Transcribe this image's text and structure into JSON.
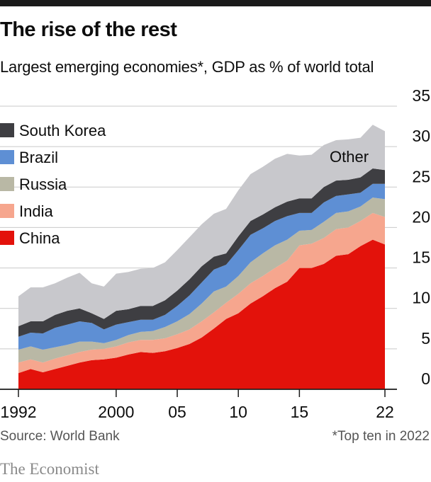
{
  "title": "The rise of the rest",
  "subtitle": "Largest emerging economies*, GDP as % of world total",
  "source": "Source: World Bank",
  "footnote": "*Top ten in 2022",
  "brand": "The Economist",
  "chart_data": {
    "type": "area",
    "stacked": true,
    "x": [
      1992,
      1993,
      1994,
      1995,
      1996,
      1997,
      1998,
      1999,
      2000,
      2001,
      2002,
      2003,
      2004,
      2005,
      2006,
      2007,
      2008,
      2009,
      2010,
      2011,
      2012,
      2013,
      2014,
      2015,
      2016,
      2017,
      2018,
      2019,
      2020,
      2021,
      2022
    ],
    "x_tick_values": [
      1992,
      2000,
      2005,
      2010,
      2015,
      2022
    ],
    "x_tick_labels": [
      "1992",
      "2000",
      "05",
      "10",
      "15",
      "22"
    ],
    "y_ticks": [
      0,
      5,
      10,
      15,
      20,
      25,
      30,
      35
    ],
    "ylim": [
      0,
      35
    ],
    "xlim": [
      1992,
      2022
    ],
    "grid": true,
    "y_axis_position": "right",
    "legend_position": "top-left",
    "series": [
      {
        "name": "China",
        "color": "#e3120b",
        "values": [
          2.0,
          2.5,
          2.1,
          2.5,
          2.9,
          3.3,
          3.6,
          3.7,
          3.9,
          4.3,
          4.6,
          4.5,
          4.7,
          5.1,
          5.6,
          6.4,
          7.5,
          8.7,
          9.4,
          10.6,
          11.5,
          12.5,
          13.3,
          15.0,
          15.0,
          15.5,
          16.5,
          16.7,
          17.7,
          18.5,
          17.9
        ]
      },
      {
        "name": "India",
        "color": "#f6a68e",
        "values": [
          1.3,
          1.2,
          1.2,
          1.3,
          1.3,
          1.3,
          1.3,
          1.3,
          1.4,
          1.5,
          1.5,
          1.6,
          1.6,
          1.7,
          1.8,
          2.0,
          2.0,
          2.0,
          2.4,
          2.5,
          2.5,
          2.5,
          2.6,
          2.8,
          3.0,
          3.2,
          3.3,
          3.3,
          3.1,
          3.3,
          3.4
        ]
      },
      {
        "name": "Russia",
        "color": "#b9b8a5",
        "values": [
          1.6,
          1.6,
          1.6,
          1.4,
          1.3,
          1.3,
          1.0,
          0.7,
          0.8,
          0.9,
          1.0,
          1.1,
          1.4,
          1.6,
          1.9,
          2.2,
          2.6,
          2.0,
          2.2,
          2.6,
          2.8,
          2.8,
          2.6,
          1.8,
          1.7,
          2.0,
          2.0,
          2.0,
          1.8,
          1.9,
          2.2
        ]
      },
      {
        "name": "Brazil",
        "color": "#5e8fd4",
        "values": [
          1.6,
          1.7,
          2.0,
          2.4,
          2.5,
          2.5,
          2.3,
          1.7,
          1.9,
          1.6,
          1.5,
          1.4,
          1.5,
          1.9,
          2.3,
          2.6,
          2.7,
          2.7,
          3.2,
          3.4,
          3.1,
          3.0,
          2.9,
          2.2,
          2.1,
          2.4,
          2.1,
          2.1,
          1.7,
          1.7,
          1.9
        ]
      },
      {
        "name": "South Korea",
        "color": "#3e3e42",
        "values": [
          1.3,
          1.4,
          1.5,
          1.6,
          1.7,
          1.6,
          1.2,
          1.3,
          1.7,
          1.6,
          1.7,
          1.7,
          1.8,
          1.9,
          2.0,
          2.0,
          1.6,
          1.4,
          1.7,
          1.7,
          1.7,
          1.7,
          1.8,
          1.8,
          1.8,
          1.9,
          1.9,
          1.8,
          1.9,
          1.9,
          1.7
        ]
      },
      {
        "name": "Other",
        "color": "#c8c8cc",
        "values": [
          3.7,
          4.2,
          4.2,
          3.9,
          4.1,
          4.4,
          3.7,
          4.0,
          4.6,
          4.6,
          4.6,
          4.7,
          4.7,
          5.0,
          5.2,
          5.2,
          5.3,
          5.5,
          5.7,
          5.8,
          5.9,
          6.0,
          5.9,
          5.3,
          5.4,
          5.2,
          5.0,
          5.0,
          4.9,
          5.4,
          4.8
        ]
      }
    ],
    "annotations": [
      "Other"
    ]
  }
}
